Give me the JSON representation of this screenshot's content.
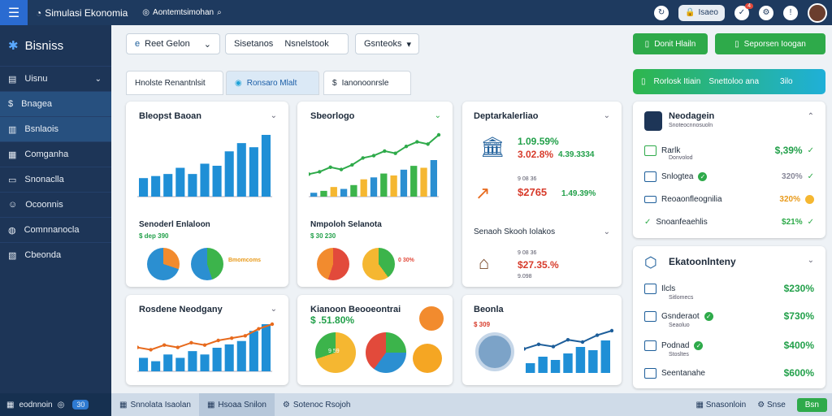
{
  "topbar": {
    "title": "Simulasi Ekonomia",
    "breadcrumb": "Aontemtsimohan",
    "pill_label": "Isaeo",
    "notif_count": "4"
  },
  "sidebar": {
    "brand": "Bisniss",
    "items": [
      {
        "label": "Uisnu"
      },
      {
        "label": "Bnagea"
      },
      {
        "label": "Bsnlaois"
      },
      {
        "label": "Comganha"
      },
      {
        "label": "Snonaclla"
      },
      {
        "label": "Ocoonnis"
      },
      {
        "label": "Comnnanocla"
      },
      {
        "label": "Cbeonda"
      }
    ],
    "footer": "eodnnoin",
    "footer_badge": "30"
  },
  "toolbar": {
    "dropdown1": "Reet Gelon",
    "field_label": "Sisetanos",
    "field_value": "Nsnelstook",
    "dropdown2": "Gsnteoks",
    "btn1": "Donit Hlailn",
    "btn2": "Seporsen Ioogan"
  },
  "tabs": [
    {
      "label": "Hnolste Renantnlsit"
    },
    {
      "label": "Ronsaro Mlalt"
    },
    {
      "label": "Ianonoonrsle"
    }
  ],
  "banner": {
    "label": "Rorlosk Itiain",
    "mid": "Snettoloo ana",
    "value": "3ilo"
  },
  "cards": {
    "c1": {
      "title": "Bleopst Baoan",
      "sub": "Senoderl Enlaloon",
      "sub_val": "$ dep 390",
      "ring_label": "Bmomcoms"
    },
    "c2": {
      "title": "Sbeorlogo",
      "sub": "Nmpoloh Selanota",
      "sub_val": "$ 30 230",
      "pct": "0 30%"
    },
    "c3": {
      "title": "Deptarkalerliao",
      "v1": "1.09.59%",
      "v2": "3.02.8%",
      "v3": "4.39.3334",
      "v4": "$2765",
      "v5": "1.49.39%",
      "small": "9 08 36",
      "sub": "Senaoh Skooh Iolakos",
      "v6": "$27.35.%",
      "sub_small": "9.098"
    },
    "c4": {
      "title": "Rosdene Neodgany"
    },
    "c5": {
      "title": "Kianoon Beooeontrai",
      "val": "$ .51.80%",
      "pie_label": "9 59"
    },
    "c6": {
      "title": "Beonla",
      "small": "$ 309"
    },
    "profile": {
      "name": "Neodagein",
      "sub": "Snoteocnnosuoln",
      "rows": [
        {
          "label": "Rarlk",
          "sub": "Donvolod",
          "val": "$,39%"
        },
        {
          "label": "Snlogtea",
          "val": "320%"
        },
        {
          "label": "Reoaonfleognilia",
          "val": "320%"
        },
        {
          "label": "Snoanfeaehlis",
          "val": "$21%"
        }
      ]
    },
    "econ": {
      "title": "Ekatoonlnteny",
      "rows": [
        {
          "label": "Ilcls",
          "sub": "Sitlomecs",
          "val": "$230%"
        },
        {
          "label": "Gsnderaot",
          "sub": "Seaoluo",
          "val": "$730%"
        },
        {
          "label": "Podnad",
          "sub": "Stosltes",
          "val": "$400%"
        },
        {
          "label": "Seentanahe",
          "val": "$600%"
        }
      ]
    }
  },
  "bottombar": {
    "tabs": [
      {
        "label": "Snnolata Isaolan"
      },
      {
        "label": "Hsoaa Snilon"
      },
      {
        "label": "Sotenoc Rsojoh"
      }
    ],
    "right1": "Snasonloin",
    "right2": "Snse",
    "right_btn": "Bsn"
  },
  "chart_data": [
    {
      "type": "bar",
      "title": "Bleopst Baoan",
      "values": [
        9,
        10,
        11,
        14,
        11,
        16,
        15,
        22,
        26,
        24,
        30
      ]
    },
    {
      "type": "line",
      "title": "Sbeorlogo",
      "values": [
        2,
        3,
        5,
        4,
        6,
        9,
        10,
        12,
        11,
        14,
        16,
        15,
        19
      ]
    },
    {
      "type": "bar",
      "title": "Rosdene Neodgany",
      "values": [
        4,
        3,
        5,
        4,
        6,
        5,
        7,
        8,
        9,
        12,
        14
      ]
    }
  ],
  "colors": {
    "accent": "#2a6bd1",
    "green": "#2eaa4a",
    "navy": "#1d3557"
  }
}
